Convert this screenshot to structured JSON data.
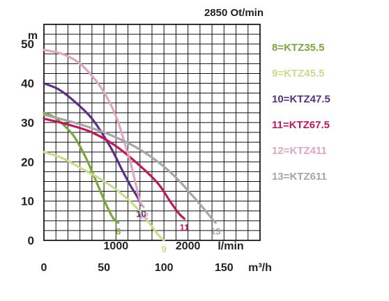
{
  "chart_data": {
    "type": "line",
    "title": "2850 Ot/min",
    "ylabel": "m",
    "xlabel": "m³/h",
    "xlabel_secondary": "l/min",
    "xlim": [
      0,
      180
    ],
    "ylim": [
      0,
      55
    ],
    "grid": true,
    "legend_position": "right",
    "y_ticks": [
      "0",
      "10",
      "20",
      "30",
      "40",
      "50"
    ],
    "x_ticks": [
      "0",
      "50",
      "100",
      "150"
    ],
    "x2_ticks": [
      "1000",
      "2000"
    ],
    "series": [
      {
        "name": "8=KTZ35.5",
        "end_label": "8",
        "color": "#7aa83a",
        "x": [
          0,
          8,
          16,
          25,
          35,
          45,
          52,
          58,
          62
        ],
        "y": [
          32.5,
          31.5,
          29.5,
          26.5,
          21,
          14,
          9,
          5.5,
          4.5
        ]
      },
      {
        "name": "9=KTZ45.5",
        "end_label": "9",
        "color": "#c8dc8c",
        "x": [
          0,
          15,
          30,
          45,
          60,
          75,
          85,
          95,
          100
        ],
        "y": [
          22.5,
          21,
          18.5,
          16,
          13,
          9,
          5.5,
          1.5,
          0
        ]
      },
      {
        "name": "10=KTZ47.5",
        "end_label": "10",
        "color": "#5a2f86",
        "x": [
          0,
          12,
          25,
          40,
          55,
          65,
          72,
          78,
          81
        ],
        "y": [
          40,
          38.5,
          35.5,
          31,
          24,
          18,
          14,
          11,
          9
        ]
      },
      {
        "name": "11=KTZ67.5",
        "end_label": "11",
        "color": "#c0185c",
        "x": [
          0,
          20,
          40,
          60,
          80,
          95,
          105,
          112,
          117
        ],
        "y": [
          31,
          29.5,
          27.5,
          24,
          19,
          14.5,
          10,
          7,
          5.5
        ]
      },
      {
        "name": "12=KTZ411",
        "end_label": "12",
        "color": "#e0a6c1",
        "x": [
          0,
          15,
          30,
          45,
          55,
          62,
          67,
          72,
          76,
          80,
          83
        ],
        "y": [
          48.5,
          47.5,
          45,
          40,
          35,
          30,
          25,
          20,
          15,
          10,
          8.5
        ]
      },
      {
        "name": "13=KTZ611",
        "end_label": "13",
        "color": "#a6a6a6",
        "x": [
          0,
          25,
          50,
          75,
          95,
          110,
          122,
          132,
          140,
          143
        ],
        "y": [
          32,
          30,
          27.5,
          24,
          20,
          16,
          12,
          8.5,
          5.5,
          4.5
        ]
      }
    ]
  }
}
